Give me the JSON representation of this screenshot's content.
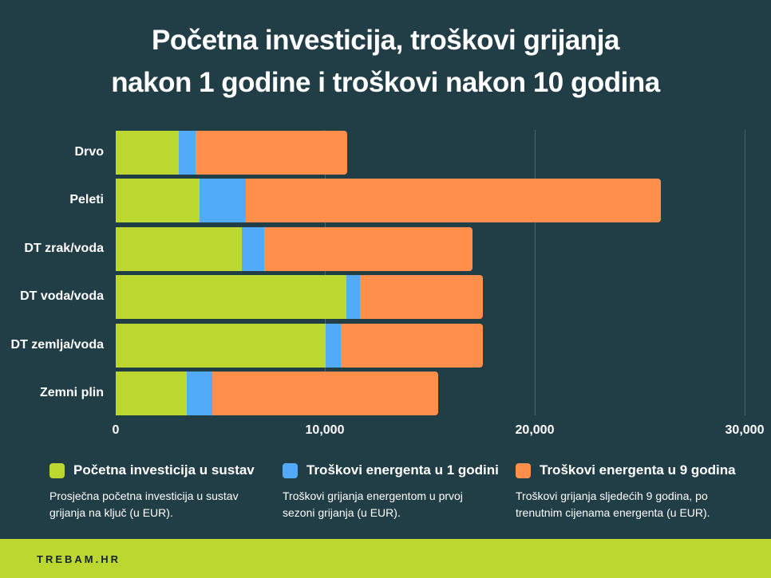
{
  "title": {
    "line1": "Početna investicija, troškovi grijanja",
    "line2": "nakon 1 godine i troškovi nakon 10 godina"
  },
  "colors": {
    "background": "#213d46",
    "initial": "#bdd731",
    "year1": "#52abf8",
    "year9": "#ff8f4b",
    "footer": "#bdd731"
  },
  "axis": {
    "ticks": [
      "0",
      "10,000",
      "20,000",
      "30,000"
    ]
  },
  "categories": [
    "Drvo",
    "Peleti",
    "DT zrak/voda",
    "DT voda/voda",
    "DT zemlja/voda",
    "Zemni plin"
  ],
  "legend": [
    {
      "label": "Početna investicija u sustav",
      "desc": "Prosječna početna investicija u sustav grijanja na ključ (u EUR)."
    },
    {
      "label": "Troškovi energenta u 1 godini",
      "desc": "Troškovi grijanja energentom u prvoj sezoni grijanja (u EUR)."
    },
    {
      "label": "Troškovi energenta u 9 godina",
      "desc": "Troškovi grijanja sljedećih 9 godina, po trenutnim cijenama energenta (u EUR)."
    }
  ],
  "footer": {
    "brand": "TREBAM.HR"
  },
  "chart_data": {
    "type": "bar",
    "orientation": "horizontal",
    "stacked": true,
    "title": "Početna investicija, troškovi grijanja nakon 1 godine i troškovi nakon 10 godina",
    "xlabel": "",
    "ylabel": "",
    "xlim": [
      0,
      30000
    ],
    "xticks": [
      0,
      10000,
      20000,
      30000
    ],
    "grid": true,
    "legend_position": "bottom",
    "categories": [
      "Drvo",
      "Peleti",
      "DT zrak/voda",
      "DT voda/voda",
      "DT zemlja/voda",
      "Zemni plin"
    ],
    "series": [
      {
        "name": "Početna investicija u sustav",
        "color": "#bdd731",
        "values": [
          3000,
          4000,
          6000,
          11000,
          10000,
          3400
        ]
      },
      {
        "name": "Troškovi energenta u 1 godini",
        "color": "#52abf8",
        "values": [
          800,
          2200,
          1100,
          650,
          750,
          1200
        ]
      },
      {
        "name": "Troškovi energenta u 9 godina",
        "color": "#ff8f4b",
        "values": [
          7250,
          19800,
          9900,
          5850,
          6750,
          10800
        ]
      }
    ]
  }
}
